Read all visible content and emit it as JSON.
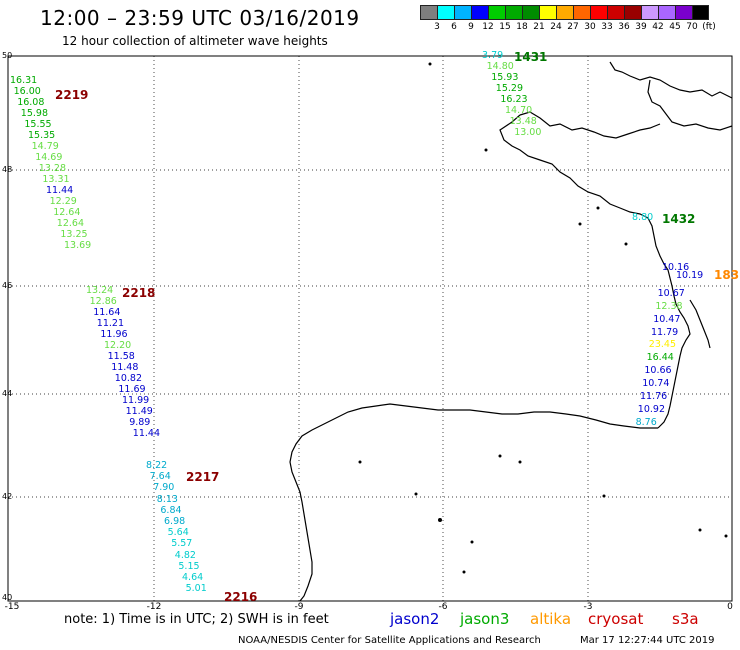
{
  "title": "12:00 – 23:59 UTC 03/16/2019",
  "subtitle": "12 hour collection of altimeter wave heights",
  "colorbar": {
    "colors": [
      "#7f7f7f",
      "#00ffff",
      "#00b3ff",
      "#0000ff",
      "#00cc00",
      "#00aa00",
      "#008c00",
      "#ffff00",
      "#ffaa00",
      "#ff6600",
      "#ff0000",
      "#cc0000",
      "#990000",
      "#cc99ff",
      "#aa66ff",
      "#7a00cc",
      "#000000"
    ],
    "labels": [
      "3",
      "6",
      "9",
      "12",
      "15",
      "18",
      "21",
      "24",
      "27",
      "30",
      "33",
      "36",
      "39",
      "42",
      "45",
      "70",
      "(ft)"
    ]
  },
  "axes": {
    "y_ticks": [
      "50",
      "48",
      "46",
      "44",
      "42",
      "40"
    ],
    "x_ticks": [
      "-15",
      "-12",
      "-9",
      "-6",
      "-3",
      "0"
    ]
  },
  "tracks": [
    {
      "time": "2219",
      "time_color": "#8b0000",
      "values": [
        {
          "v": "16.31",
          "c": "#00aa00"
        },
        {
          "v": "16.00",
          "c": "#00aa00"
        },
        {
          "v": "16.08",
          "c": "#00aa00"
        },
        {
          "v": "15.98",
          "c": "#00aa00"
        },
        {
          "v": "15.55",
          "c": "#00aa00"
        },
        {
          "v": "15.35",
          "c": "#00aa00"
        },
        {
          "v": "14.79",
          "c": "#66dd44"
        },
        {
          "v": "14.69",
          "c": "#66dd44"
        },
        {
          "v": "13.28",
          "c": "#66dd44"
        },
        {
          "v": "13.31",
          "c": "#66dd44"
        },
        {
          "v": "11.44",
          "c": "#0000cc"
        },
        {
          "v": "12.29",
          "c": "#66dd44"
        },
        {
          "v": "12.64",
          "c": "#66dd44"
        },
        {
          "v": "12.64",
          "c": "#66dd44"
        },
        {
          "v": "13.25",
          "c": "#66dd44"
        },
        {
          "v": "13.69",
          "c": "#66dd44"
        }
      ]
    },
    {
      "time": "2218",
      "time_color": "#8b0000",
      "values": [
        {
          "v": "13.24",
          "c": "#66dd44"
        },
        {
          "v": "12.86",
          "c": "#66dd44"
        },
        {
          "v": "11.64",
          "c": "#0000cc"
        },
        {
          "v": "11.21",
          "c": "#0000cc"
        },
        {
          "v": "11.96",
          "c": "#0000cc"
        },
        {
          "v": "12.20",
          "c": "#66dd44"
        },
        {
          "v": "11.58",
          "c": "#0000cc"
        },
        {
          "v": "11.48",
          "c": "#0000cc"
        },
        {
          "v": "10.82",
          "c": "#0000cc"
        },
        {
          "v": "11.69",
          "c": "#0000cc"
        },
        {
          "v": "11.99",
          "c": "#0000cc"
        },
        {
          "v": "11.49",
          "c": "#0000cc"
        },
        {
          "v": "9.89",
          "c": "#0000cc"
        },
        {
          "v": "11.44",
          "c": "#0000cc"
        }
      ]
    },
    {
      "time": "2217",
      "time_color": "#8b0000",
      "values": [
        {
          "v": "8.22",
          "c": "#00aacc"
        },
        {
          "v": "7.64",
          "c": "#00aacc"
        },
        {
          "v": "7.90",
          "c": "#00aacc"
        },
        {
          "v": "8.13",
          "c": "#00aacc"
        },
        {
          "v": "6.84",
          "c": "#00aacc"
        },
        {
          "v": "6.98",
          "c": "#00aacc"
        },
        {
          "v": "5.64",
          "c": "#00cccc"
        },
        {
          "v": "5.57",
          "c": "#00cccc"
        },
        {
          "v": "4.82",
          "c": "#00cccc"
        },
        {
          "v": "5.15",
          "c": "#00cccc"
        },
        {
          "v": "4.64",
          "c": "#00cccc"
        },
        {
          "v": "5.01",
          "c": "#00cccc"
        }
      ]
    },
    {
      "time": "2216",
      "time_color": "#8b0000"
    },
    {
      "time": "1431",
      "time_color": "#007700",
      "values": [
        {
          "v": "3.79",
          "c": "#00cccc"
        },
        {
          "v": "14.80",
          "c": "#66dd44"
        },
        {
          "v": "15.93",
          "c": "#00aa00"
        },
        {
          "v": "15.29",
          "c": "#00aa00"
        },
        {
          "v": "16.23",
          "c": "#00aa00"
        },
        {
          "v": "14.70",
          "c": "#66dd44"
        },
        {
          "v": "13.48",
          "c": "#66dd44"
        },
        {
          "v": "13.00",
          "c": "#66dd44"
        }
      ]
    },
    {
      "time": "1432",
      "time_color": "#007700",
      "values": [
        {
          "v": "8.80",
          "c": "#00cccc"
        }
      ]
    },
    {
      "time": "183",
      "time_color": "#ff8800",
      "values": [
        {
          "v": "10.16",
          "c": "#0000cc"
        },
        {
          "v": "10.19",
          "c": "#0000cc"
        },
        {
          "v": "10.67",
          "c": "#0000cc"
        },
        {
          "v": "12.38",
          "c": "#66dd44"
        },
        {
          "v": "10.47",
          "c": "#0000cc"
        },
        {
          "v": "11.79",
          "c": "#0000cc"
        },
        {
          "v": "23.45",
          "c": "#ffee00"
        },
        {
          "v": "16.44",
          "c": "#00aa00"
        },
        {
          "v": "10.66",
          "c": "#0000cc"
        },
        {
          "v": "10.74",
          "c": "#0000cc"
        },
        {
          "v": "11.76",
          "c": "#0000cc"
        },
        {
          "v": "10.92",
          "c": "#0000cc"
        },
        {
          "v": "8.76",
          "c": "#00aacc"
        }
      ]
    }
  ],
  "footer": {
    "note": "note:  1) Time is in UTC;  2) SWH is in feet",
    "legend": [
      {
        "label": "jason2",
        "color": "#0000cc"
      },
      {
        "label": "jason3",
        "color": "#00aa00"
      },
      {
        "label": "altika",
        "color": "#ff9900"
      },
      {
        "label": "cryosat",
        "color": "#cc0000"
      },
      {
        "label": "s3a",
        "color": "#cc0000"
      }
    ],
    "credit": "NOAA/NESDIS Center for Satellite Applications and Research",
    "timestamp": "Mar 17 12:27:44 UTC 2019"
  }
}
